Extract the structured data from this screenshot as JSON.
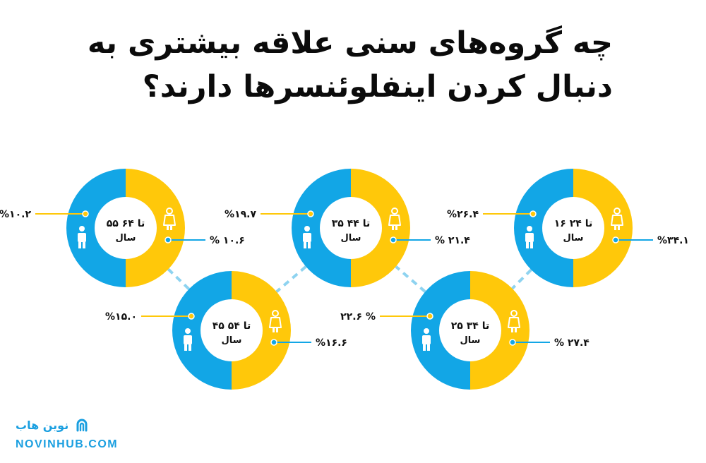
{
  "title": {
    "line1": "چه گروه‌های سنی علاقه بیشتری به",
    "line2": "دنبال کردن اینفلوئنسرها دارند؟"
  },
  "colors": {
    "female": "#ffc80a",
    "male": "#12a6e6",
    "connector": "#8ed3f0"
  },
  "icons": {
    "female": "female-person-icon",
    "male": "male-person-icon"
  },
  "chart_data": {
    "type": "pie",
    "series": [
      {
        "name": "female",
        "color": "#ffc80a"
      },
      {
        "name": "male",
        "color": "#12a6e6"
      }
    ],
    "groups": [
      {
        "age_line1": "۱۶ تا ۲۴",
        "age_line2": "سال",
        "female_pct": 34.1,
        "male_pct": 26.4,
        "female_label": "%۳۴.۱",
        "male_label": "%۲۶.۴"
      },
      {
        "age_line1": "۲۵ تا ۳۴",
        "age_line2": "سال",
        "female_pct": 27.4,
        "male_pct": 22.6,
        "female_label": "% ۲۷.۴",
        "male_label": "۲۲.۶ %"
      },
      {
        "age_line1": "۳۵ تا ۴۴",
        "age_line2": "سال",
        "female_pct": 21.4,
        "male_pct": 19.7,
        "female_label": "% ۲۱.۴",
        "male_label": "%۱۹.۷"
      },
      {
        "age_line1": "۴۵ تا ۵۴",
        "age_line2": "سال",
        "female_pct": 16.6,
        "male_pct": 15.0,
        "female_label": "%۱۶.۶",
        "male_label": "%۱۵.۰"
      },
      {
        "age_line1": "۵۵ تا ۶۴",
        "age_line2": "سال",
        "female_pct": 10.6,
        "male_pct": 10.2,
        "female_label": "% ۱۰.۶",
        "male_label": "%۱۰.۲"
      }
    ]
  },
  "footer": {
    "brand_name": "نوین هاب",
    "url": "NOVINHUB.COM"
  }
}
